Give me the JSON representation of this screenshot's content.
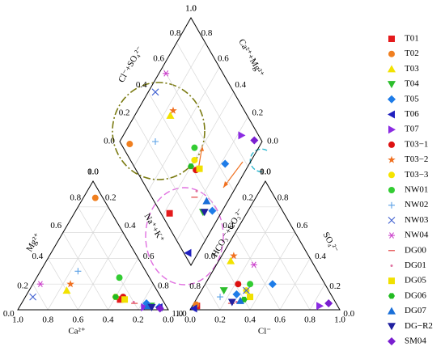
{
  "chart_data": {
    "type": "piper",
    "axes": [
      {
        "label": "Ca²⁺",
        "ticks": [
          {
            "value": 0,
            "label": "0.0"
          },
          0.2,
          0.4,
          0.6,
          0.8,
          {
            "value": 1,
            "label": "1.0"
          }
        ]
      },
      {
        "label": "Mg²⁺",
        "ticks": [
          {
            "value": 0,
            "label": "0.0"
          },
          0.2,
          0.4,
          0.6,
          0.8,
          {
            "value": 1,
            "label": "1.0"
          }
        ]
      },
      {
        "label": "Na⁺+K⁺",
        "ticks": [
          {
            "value": 0,
            "label": "0.0"
          },
          0.2,
          0.4,
          0.6,
          0.8,
          {
            "value": 1,
            "label": "1.0"
          }
        ]
      },
      {
        "label": "Cl⁻",
        "ticks": [
          {
            "value": 0,
            "label": "0.0"
          },
          0.2,
          0.4,
          0.6,
          0.8,
          {
            "value": 1,
            "label": "1.0"
          }
        ]
      },
      {
        "label": "SO₄²⁻",
        "ticks": [
          {
            "value": 0,
            "label": "0.0"
          },
          0.2,
          0.4,
          0.6,
          0.8,
          {
            "value": 1,
            "label": "1.0"
          }
        ]
      },
      {
        "label": "HCO₃⁻+CO₃²⁻",
        "ticks": [
          {
            "value": 0,
            "label": "0.0"
          },
          0.2,
          0.4,
          0.6,
          0.8,
          {
            "value": 1,
            "label": "1.0"
          }
        ]
      },
      {
        "label": "Cl⁻+SO₄²⁻",
        "ticks": [
          {
            "value": 0,
            "label": "0.0"
          },
          0.2,
          0.4,
          0.6,
          0.8,
          {
            "value": 1,
            "label": "1.0"
          }
        ]
      },
      {
        "label": "Ca²⁺+Mg²⁺",
        "ticks": [
          {
            "value": 0,
            "label": "0.0"
          },
          0.2,
          0.4,
          0.6,
          0.8,
          {
            "value": 1,
            "label": "1.0"
          }
        ]
      }
    ],
    "grid": true,
    "series": [
      {
        "name": "T01",
        "color": "#e41a1c",
        "marker": "square",
        "ca": [
          0.28
        ],
        "mg": [
          0.08
        ],
        "cl": [
          0.03
        ],
        "so4": [
          0.03
        ]
      },
      {
        "name": "T02",
        "color": "#f07f20",
        "marker": "circle",
        "ca": [
          0.05
        ],
        "mg": [
          0.87
        ],
        "cl": [
          0.02
        ],
        "so4": [
          0.04
        ]
      },
      {
        "name": "T03",
        "color": "#f2e200",
        "marker": "triangle-up",
        "ca": [
          0.6
        ],
        "mg": [
          0.15
        ],
        "cl": [
          0.08
        ],
        "so4": [
          0.38
        ]
      },
      {
        "name": "T04",
        "color": "#2dbe2d",
        "marker": "triangle-down",
        "ca": [
          0.1
        ],
        "mg": [
          0.03
        ],
        "cl": [
          0.15
        ],
        "so4": [
          0.15
        ]
      },
      {
        "name": "T05",
        "color": "#1e7ce8",
        "marker": "diamond",
        "ca": [
          0.12,
          0.05
        ],
        "mg": [
          0.05,
          0.02
        ],
        "cl": [
          0.45,
          0.25
        ],
        "so4": [
          0.2,
          0.12
        ]
      },
      {
        "name": "T06",
        "color": "#1f1fbf",
        "marker": "triangle-left",
        "ca": [
          0.05
        ],
        "mg": [
          0.02
        ],
        "cl": [
          0.02
        ],
        "so4": [
          0.01
        ]
      },
      {
        "name": "T07",
        "color": "#8b2be2",
        "marker": "triangle-right",
        "ca": [
          0.15
        ],
        "mg": [
          0.02
        ],
        "cl": [
          0.85
        ],
        "so4": [
          0.03
        ]
      },
      {
        "name": "T03−1",
        "color": "#dd1111",
        "marker": "circle",
        "ca": [
          0.25
        ],
        "mg": [
          0.1
        ],
        "cl": [
          0.22
        ],
        "so4": [
          0.2
        ]
      },
      {
        "name": "T03−2",
        "color": "#f07020",
        "marker": "star",
        "ca": [
          0.55
        ],
        "mg": [
          0.2
        ],
        "cl": [
          0.08
        ],
        "so4": [
          0.42
        ]
      },
      {
        "name": "T03−3",
        "color": "#f5e400",
        "marker": "circle",
        "ca": [
          0.3
        ],
        "mg": [
          0.1
        ],
        "cl": [
          0.3
        ],
        "so4": [
          0.15
        ]
      },
      {
        "name": "NW01",
        "color": "#33cc33",
        "marker": "circle",
        "ca": [
          0.2
        ],
        "mg": [
          0.25
        ],
        "cl": [
          0.3
        ],
        "so4": [
          0.2
        ]
      },
      {
        "name": "NW02",
        "color": "#5aa0e6",
        "marker": "plus",
        "ca": [
          0.45
        ],
        "mg": [
          0.3
        ],
        "cl": [
          0.15
        ],
        "so4": [
          0.1
        ]
      },
      {
        "name": "NW03",
        "color": "#4060d0",
        "marker": "x",
        "ca": [
          0.85
        ],
        "mg": [
          0.1
        ],
        "cl": [
          0.3
        ],
        "so4": [
          0.15
        ]
      },
      {
        "name": "NW04",
        "color": "#cc44cc",
        "marker": "asterisk",
        "ca": [
          0.75
        ],
        "mg": [
          0.2
        ],
        "cl": [
          0.25
        ],
        "so4": [
          0.35
        ]
      },
      {
        "name": "DG00",
        "color": "#e03030",
        "marker": "dash",
        "ca": [
          0.2
        ],
        "mg": [
          0.05
        ],
        "cl": [
          0.25
        ],
        "so4": [
          0.05
        ]
      },
      {
        "name": "DG01",
        "color": "#e070a0",
        "marker": "dot",
        "ca": [
          0.2
        ],
        "mg": [
          0.06
        ],
        "cl": [
          0.28
        ],
        "so4": [
          0.06
        ]
      },
      {
        "name": "DG05",
        "color": "#f0e000",
        "marker": "square",
        "ca": [
          0.25
        ],
        "mg": [
          0.08
        ],
        "cl": [
          0.35
        ],
        "so4": [
          0.1
        ]
      },
      {
        "name": "DG06",
        "color": "#22bb22",
        "marker": "hexagon",
        "ca": [
          0.3
        ],
        "mg": [
          0.1
        ],
        "cl": [
          0.32
        ],
        "so4": [
          0.08
        ]
      },
      {
        "name": "DG07",
        "color": "#1a6fd8",
        "marker": "triangle-up",
        "ca": [
          0.12
        ],
        "mg": [
          0.03
        ],
        "cl": [
          0.3
        ],
        "so4": [
          0.07
        ]
      },
      {
        "name": "DG−R2",
        "color": "#2020a0",
        "marker": "triangle-down",
        "ca": [
          0.1
        ],
        "mg": [
          0.02
        ],
        "cl": [
          0.25
        ],
        "so4": [
          0.06
        ]
      },
      {
        "name": "SM04",
        "color": "#7a1fd0",
        "marker": "diamond",
        "ca": [
          0.05
        ],
        "mg": [
          0.01
        ],
        "cl": [
          0.9
        ],
        "so4": [
          0.05
        ]
      }
    ]
  }
}
